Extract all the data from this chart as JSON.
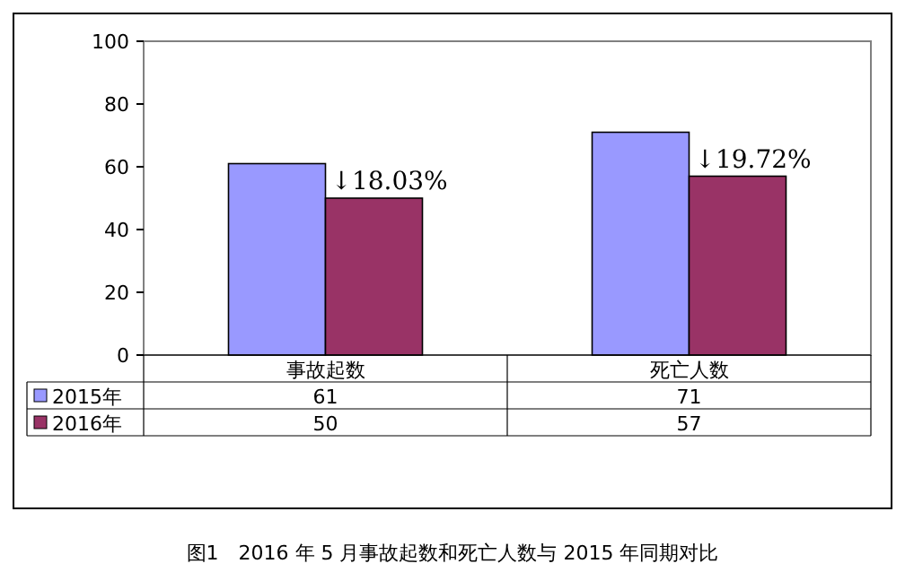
{
  "chart_data": {
    "type": "bar",
    "title": "图1　2016 年 5 月事故起数和死亡人数与 2015 年同期对比",
    "categories": [
      "事故起数",
      "死亡人数"
    ],
    "series": [
      {
        "name": "2015年",
        "color": "#9999ff",
        "values": [
          61,
          71
        ]
      },
      {
        "name": "2016年",
        "color": "#993366",
        "values": [
          50,
          57
        ]
      }
    ],
    "ylim": [
      0,
      100
    ],
    "yticks": [
      0,
      20,
      40,
      60,
      80,
      100
    ],
    "data_labels": true,
    "legend": "bottom",
    "grid": false,
    "annotations": [
      {
        "text": "↓18.03%",
        "x": "事故起数",
        "y": 50
      },
      {
        "text": "↓19.72%",
        "x": "死亡人数",
        "y": 57
      }
    ]
  }
}
